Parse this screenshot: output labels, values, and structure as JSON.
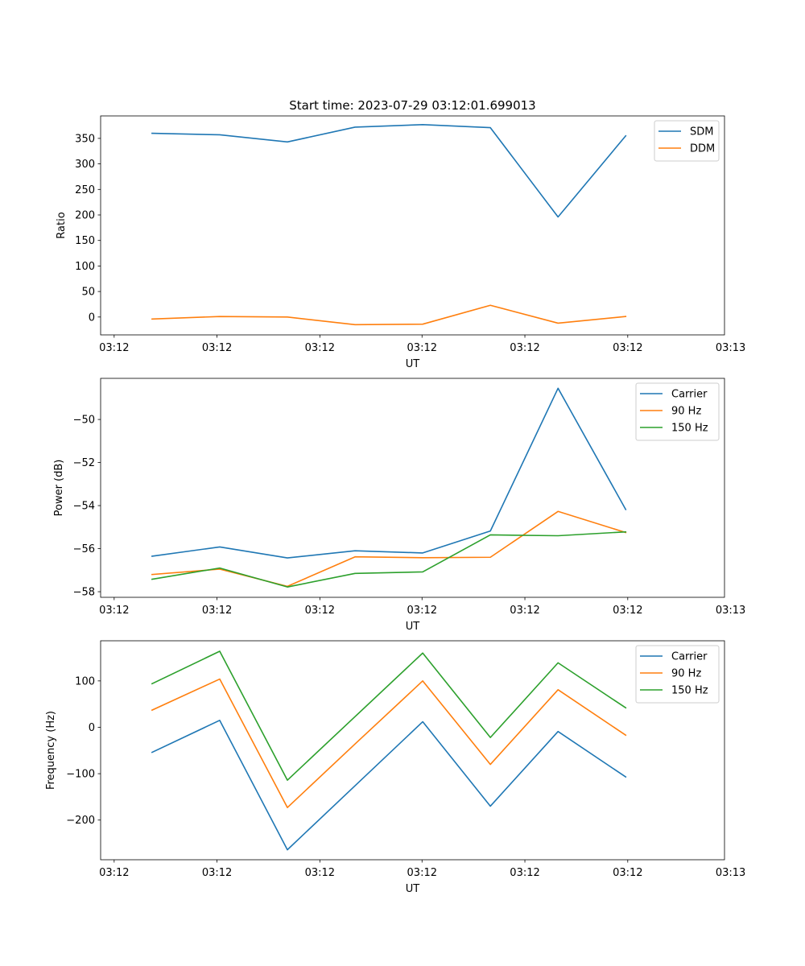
{
  "figure_title": "Start time: 2023-07-29 03:12:01.699013",
  "chart_data": [
    {
      "type": "line",
      "title": "Start time: 2023-07-29 03:12:01.699013",
      "xlabel": "UT",
      "ylabel": "Ratio",
      "x": [
        1,
        2,
        3,
        4,
        5,
        6,
        7,
        8
      ],
      "xlim": [
        0.24,
        9.46
      ],
      "x_ticks": [
        0.44,
        1.96,
        3.48,
        4.99,
        6.51,
        8.03,
        9.55
      ],
      "x_tick_labels": [
        "03:12",
        "03:12",
        "03:12",
        "03:12",
        "03:12",
        "03:12",
        "03:13"
      ],
      "ylim": [
        -35,
        394
      ],
      "y_ticks": [
        0,
        50,
        100,
        150,
        200,
        250,
        300,
        350
      ],
      "y_tick_labels": [
        "0",
        "50",
        "100",
        "150",
        "200",
        "250",
        "300",
        "350"
      ],
      "legend_position": "upper-right",
      "series": [
        {
          "name": "SDM",
          "color": "#1f77b4",
          "values": [
            360,
            357,
            343,
            372,
            377,
            371,
            196,
            355
          ]
        },
        {
          "name": "DDM",
          "color": "#ff7f0e",
          "values": [
            -4,
            1,
            0,
            -15,
            -14,
            23,
            -12,
            1
          ]
        }
      ]
    },
    {
      "type": "line",
      "title": "",
      "xlabel": "UT",
      "ylabel": "Power (dB)",
      "x": [
        1,
        2,
        3,
        4,
        5,
        6,
        7,
        8
      ],
      "xlim": [
        0.24,
        9.46
      ],
      "x_ticks": [
        0.44,
        1.96,
        3.48,
        4.99,
        6.51,
        8.03,
        9.55
      ],
      "x_tick_labels": [
        "03:12",
        "03:12",
        "03:12",
        "03:12",
        "03:12",
        "03:12",
        "03:13"
      ],
      "ylim": [
        -58.26,
        -48.09
      ],
      "y_ticks": [
        -58,
        -56,
        -54,
        -52,
        -50
      ],
      "y_tick_labels": [
        "−58",
        "−56",
        "−54",
        "−52",
        "−50"
      ],
      "legend_position": "upper-right",
      "series": [
        {
          "name": "Carrier",
          "color": "#1f77b4",
          "values": [
            -56.35,
            -55.92,
            -56.43,
            -56.1,
            -56.2,
            -55.18,
            -48.55,
            -54.18
          ]
        },
        {
          "name": "90 Hz",
          "color": "#ff7f0e",
          "values": [
            -57.2,
            -56.95,
            -57.75,
            -56.38,
            -56.42,
            -56.4,
            -54.27,
            -55.25
          ]
        },
        {
          "name": "150 Hz",
          "color": "#2ca02c",
          "values": [
            -57.42,
            -56.9,
            -57.78,
            -57.15,
            -57.08,
            -55.36,
            -55.4,
            -55.22
          ]
        }
      ]
    },
    {
      "type": "line",
      "title": "",
      "xlabel": "UT",
      "ylabel": "Frequency (Hz)",
      "x": [
        1,
        2,
        3,
        4,
        5,
        6,
        7,
        8
      ],
      "xlim": [
        0.24,
        9.46
      ],
      "x_ticks": [
        0.44,
        1.96,
        3.48,
        4.99,
        6.51,
        8.03,
        9.55
      ],
      "x_tick_labels": [
        "03:12",
        "03:12",
        "03:12",
        "03:12",
        "03:12",
        "03:12",
        "03:13"
      ],
      "ylim": [
        -285.5,
        186.5
      ],
      "y_ticks": [
        -200,
        -100,
        0,
        100
      ],
      "y_tick_labels": [
        "−200",
        "−100",
        "0",
        "100"
      ],
      "legend_position": "upper-right",
      "series": [
        {
          "name": "Carrier",
          "color": "#1f77b4",
          "values": [
            -54,
            15,
            -264,
            -126,
            12,
            -170,
            -9,
            -107
          ]
        },
        {
          "name": "90 Hz",
          "color": "#ff7f0e",
          "values": [
            37,
            104,
            -173,
            -36,
            100,
            -80,
            81,
            -17
          ]
        },
        {
          "name": "150 Hz",
          "color": "#2ca02c",
          "values": [
            94,
            164,
            -114,
            23,
            160,
            -22,
            139,
            42
          ]
        }
      ]
    }
  ]
}
